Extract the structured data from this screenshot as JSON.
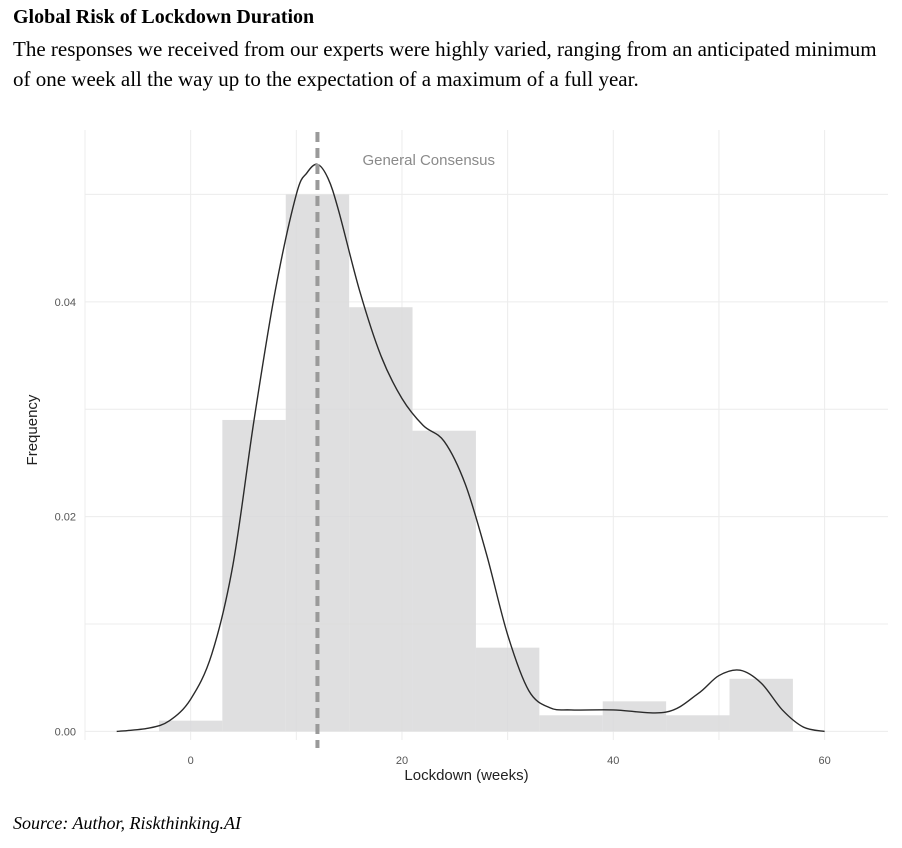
{
  "figure": {
    "title": "Global Risk of Lockdown Duration",
    "subtitle": "The responses we received from our experts were highly varied, ranging from an anticipated minimum of one week all the way up to the expectation of a maximum of a full year.",
    "source": "Source: Author, Riskthinking.AI"
  },
  "chart_data": {
    "type": "bar",
    "title": "",
    "xlabel": "Lockdown (weeks)",
    "ylabel": "Frequency",
    "xlim": [
      -10,
      66
    ],
    "ylim": [
      -0.0008,
      0.056
    ],
    "x_ticks": [
      0,
      20,
      40,
      60
    ],
    "x_tick_labels": [
      "0",
      "20",
      "40",
      "60"
    ],
    "y_ticks": [
      0.0,
      0.02,
      0.04
    ],
    "y_tick_labels": [
      "0.00",
      "0.02",
      "0.04"
    ],
    "grid": true,
    "histogram_bins": [
      {
        "x0": -3,
        "x1": 3,
        "value": 0.001
      },
      {
        "x0": 3,
        "x1": 9,
        "value": 0.029
      },
      {
        "x0": 9,
        "x1": 15,
        "value": 0.05
      },
      {
        "x0": 15,
        "x1": 21,
        "value": 0.0395
      },
      {
        "x0": 21,
        "x1": 27,
        "value": 0.028
      },
      {
        "x0": 27,
        "x1": 33,
        "value": 0.0078
      },
      {
        "x0": 33,
        "x1": 39,
        "value": 0.0015
      },
      {
        "x0": 39,
        "x1": 45,
        "value": 0.0028
      },
      {
        "x0": 45,
        "x1": 51,
        "value": 0.0015
      },
      {
        "x0": 51,
        "x1": 57,
        "value": 0.0049
      }
    ],
    "density": {
      "name": "density",
      "x": [
        -7,
        -4,
        -2,
        0,
        2,
        4,
        6,
        8,
        10,
        11,
        12,
        13,
        14,
        16,
        18,
        20,
        22,
        24,
        26,
        28,
        30,
        32,
        34,
        36,
        40,
        45,
        48,
        50,
        52,
        54,
        56,
        58,
        60
      ],
      "y": [
        0.0,
        0.0003,
        0.001,
        0.003,
        0.0072,
        0.0155,
        0.029,
        0.041,
        0.05,
        0.052,
        0.0528,
        0.0515,
        0.0485,
        0.041,
        0.035,
        0.031,
        0.0285,
        0.027,
        0.023,
        0.0165,
        0.009,
        0.0038,
        0.0022,
        0.002,
        0.002,
        0.0018,
        0.0035,
        0.0052,
        0.0057,
        0.0045,
        0.002,
        0.0004,
        0.0
      ]
    },
    "vline": {
      "x": 12,
      "label": "General Consensus"
    },
    "colors": {
      "bars": "#d9d9da",
      "density_line": "#2a2a2a",
      "vline": "#9a9a9a",
      "grid": "#ececec"
    }
  }
}
